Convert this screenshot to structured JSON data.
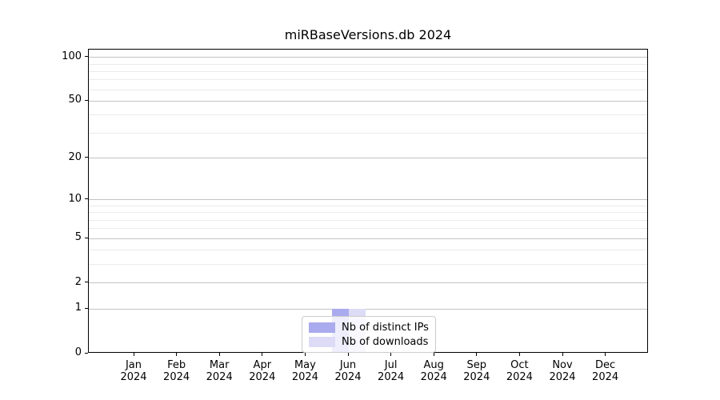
{
  "chart_data": {
    "type": "bar",
    "title": "miRBaseVersions.db 2024",
    "categories": [
      {
        "month": "Jan",
        "year": "2024"
      },
      {
        "month": "Feb",
        "year": "2024"
      },
      {
        "month": "Mar",
        "year": "2024"
      },
      {
        "month": "Apr",
        "year": "2024"
      },
      {
        "month": "May",
        "year": "2024"
      },
      {
        "month": "Jun",
        "year": "2024"
      },
      {
        "month": "Jul",
        "year": "2024"
      },
      {
        "month": "Aug",
        "year": "2024"
      },
      {
        "month": "Sep",
        "year": "2024"
      },
      {
        "month": "Oct",
        "year": "2024"
      },
      {
        "month": "Nov",
        "year": "2024"
      },
      {
        "month": "Dec",
        "year": "2024"
      }
    ],
    "series": [
      {
        "name": "Nb of distinct IPs",
        "color": "#aaaaee",
        "values": [
          0,
          0,
          0,
          0,
          0,
          1,
          0,
          0,
          0,
          0,
          0,
          0
        ]
      },
      {
        "name": "Nb of downloads",
        "color": "#dcdcf7",
        "values": [
          0,
          0,
          0,
          0,
          0,
          1,
          0,
          0,
          0,
          0,
          0,
          0
        ]
      }
    ],
    "y_axis": {
      "scale": "log1p",
      "tick_values": [
        0,
        1,
        2,
        5,
        10,
        20,
        50,
        100
      ],
      "tick_labels": [
        "0",
        "1",
        "2",
        "5",
        "10",
        "20",
        "50",
        "100"
      ],
      "major_gridlines": [
        1,
        2,
        5,
        10,
        20,
        50,
        100
      ],
      "minor_gridlines": [
        3,
        4,
        6,
        7,
        8,
        9,
        30,
        40,
        60,
        70,
        80,
        90
      ],
      "ylim": [
        0,
        112.9
      ],
      "grid": true
    },
    "legend": {
      "position": "lower center",
      "entries": [
        "Nb of distinct IPs",
        "Nb of downloads"
      ]
    }
  },
  "style": {
    "background": "#ffffff",
    "axis_color": "#000000",
    "text_color": "#000000",
    "major_grid_color": "#c3c3c3",
    "minor_grid_color": "#ebebeb",
    "legend_border_color": "#cccccc",
    "bar_colors": [
      "#aaaaee",
      "#dcdcf7"
    ]
  }
}
